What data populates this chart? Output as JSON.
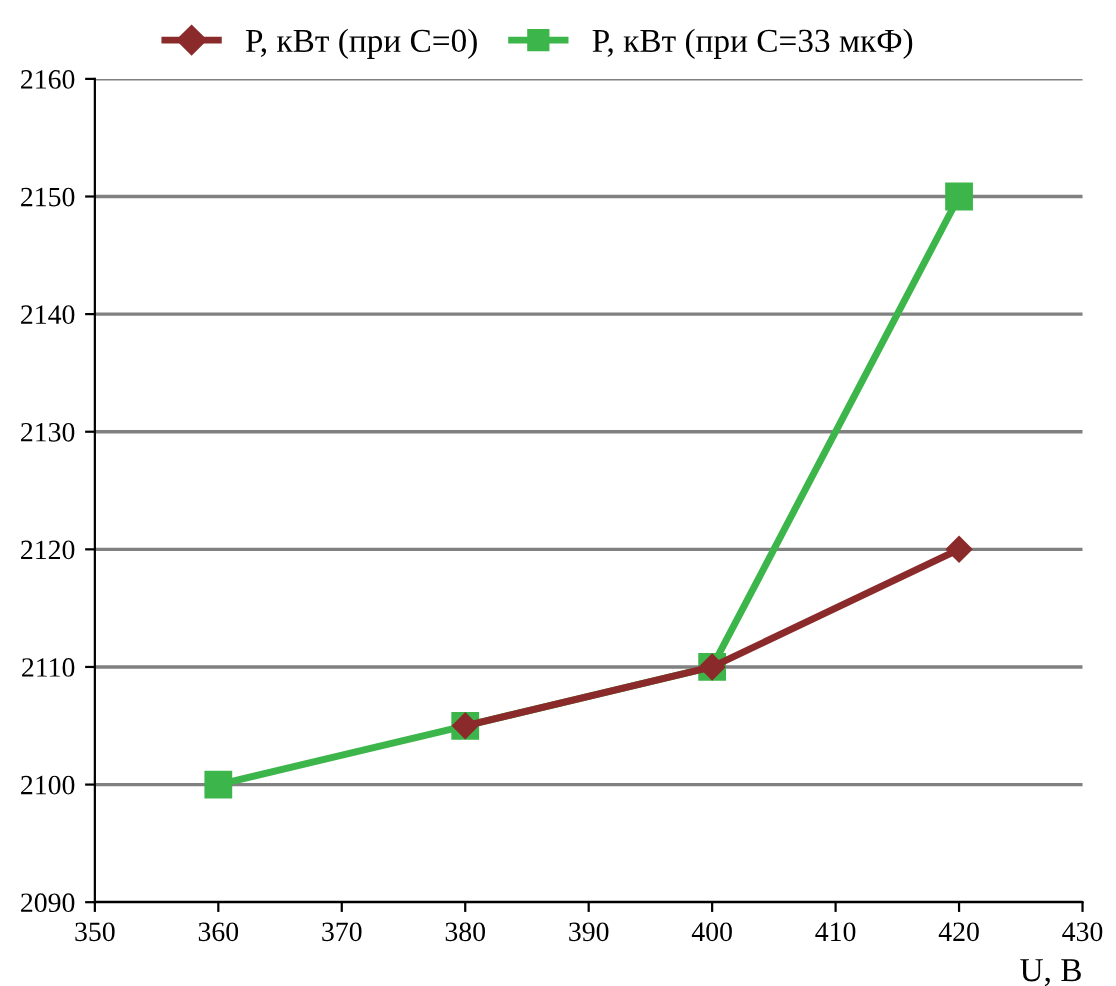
{
  "chart_data": {
    "type": "line",
    "xlabel": "U, В",
    "x": [
      360,
      380,
      400,
      420
    ],
    "series": [
      {
        "name": "P, кВт (при С=0)",
        "color": "#8b2a2a",
        "values": [
          null,
          2105,
          2110,
          2120
        ],
        "marker": "diamond"
      },
      {
        "name": "P, кВт (при С=33 мкФ)",
        "color": "#3cb64a",
        "values": [
          2100,
          2105,
          2110,
          2150
        ],
        "marker": "square"
      }
    ],
    "xlim": [
      350,
      430
    ],
    "xticks": [
      350,
      360,
      370,
      380,
      390,
      400,
      410,
      420,
      430
    ],
    "ylim": [
      2090,
      2160
    ],
    "yticks": [
      2090,
      2100,
      2110,
      2120,
      2130,
      2140,
      2150,
      2160
    ],
    "grid": "y",
    "legend": "top",
    "line_style": "solid"
  }
}
